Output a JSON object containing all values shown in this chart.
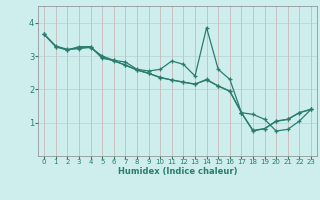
{
  "xlabel": "Humidex (Indice chaleur)",
  "xlim": [
    -0.5,
    23.5
  ],
  "ylim": [
    0,
    4.5
  ],
  "yticks": [
    1,
    2,
    3,
    4
  ],
  "xticks": [
    0,
    1,
    2,
    3,
    4,
    5,
    6,
    7,
    8,
    9,
    10,
    11,
    12,
    13,
    14,
    15,
    16,
    17,
    18,
    19,
    20,
    21,
    22,
    23
  ],
  "line_color": "#2a7d6e",
  "bg_color": "#cdeeed",
  "grid_color_h": "#b8d8d6",
  "grid_color_v": "#c8baba",
  "series": [
    {
      "x": [
        0,
        1,
        2,
        3,
        4,
        5,
        6,
        7,
        8,
        9,
        10,
        11,
        12,
        13,
        14,
        15,
        16,
        17,
        18,
        19,
        20,
        21,
        22,
        23
      ],
      "y": [
        3.65,
        3.28,
        3.18,
        3.28,
        3.28,
        2.93,
        2.87,
        2.82,
        2.6,
        2.55,
        2.6,
        2.85,
        2.75,
        2.4,
        3.85,
        2.6,
        2.3,
        1.3,
        1.25,
        1.1,
        0.75,
        0.8,
        1.05,
        1.4
      ]
    },
    {
      "x": [
        0,
        1,
        2,
        3,
        4,
        5,
        6,
        7,
        8,
        9,
        10,
        11,
        12,
        13,
        14,
        15,
        16,
        17,
        18,
        19,
        20,
        21,
        22,
        23
      ],
      "y": [
        3.65,
        3.28,
        3.18,
        3.25,
        3.25,
        3.0,
        2.87,
        2.72,
        2.58,
        2.48,
        2.35,
        2.28,
        2.22,
        2.15,
        2.3,
        2.1,
        1.95,
        1.3,
        0.75,
        0.82,
        1.05,
        1.1,
        1.3,
        1.4
      ]
    },
    {
      "x": [
        0,
        1,
        2,
        3,
        4,
        5,
        6,
        7,
        8,
        9,
        10,
        11,
        12,
        13,
        14,
        15,
        16,
        17,
        18,
        19,
        20,
        21,
        22,
        23
      ],
      "y": [
        3.65,
        3.3,
        3.2,
        3.22,
        3.27,
        2.97,
        2.85,
        2.73,
        2.58,
        2.48,
        2.36,
        2.28,
        2.21,
        2.16,
        2.28,
        2.1,
        1.94,
        1.3,
        0.77,
        0.82,
        1.04,
        1.1,
        1.3,
        1.4
      ]
    }
  ]
}
